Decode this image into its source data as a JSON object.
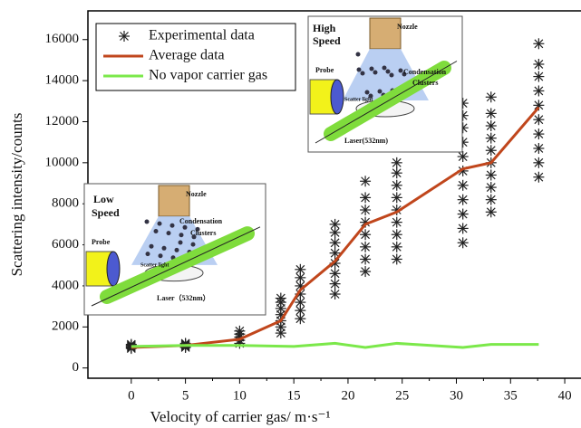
{
  "chart_data": {
    "type": "scatter",
    "xlabel": "Velocity of carrier gas/ m·s⁻¹",
    "ylabel": "Scattering intensity/counts",
    "xlim": [
      -4,
      41.5
    ],
    "ylim": [
      -500,
      17400
    ],
    "xticks": [
      0,
      5,
      10,
      15,
      20,
      25,
      30,
      35,
      40
    ],
    "yticks": [
      0,
      2000,
      4000,
      6000,
      8000,
      10000,
      12000,
      14000,
      16000
    ],
    "legend": "upper left",
    "series": [
      {
        "name": "Experimental data",
        "type": "scatter",
        "color": "#222222",
        "x": [
          0,
          0,
          0,
          0,
          0,
          5,
          5,
          5,
          5,
          5,
          10,
          10,
          10,
          10,
          10,
          13.8,
          13.8,
          13.8,
          13.8,
          13.8,
          13.8,
          13.8,
          15.6,
          15.6,
          15.6,
          15.6,
          15.6,
          15.6,
          15.6,
          18.8,
          18.8,
          18.8,
          18.8,
          18.8,
          18.8,
          18.8,
          18.8,
          21.6,
          21.6,
          21.6,
          21.6,
          21.6,
          21.6,
          21.6,
          21.6,
          24.5,
          24.5,
          24.5,
          24.5,
          24.5,
          24.5,
          24.5,
          24.5,
          24.5,
          30.6,
          30.6,
          30.6,
          30.6,
          30.6,
          30.6,
          30.6,
          30.6,
          30.6,
          30.6,
          30.6,
          33.2,
          33.2,
          33.2,
          33.2,
          33.2,
          33.2,
          33.2,
          33.2,
          33.2,
          33.2,
          37.6,
          37.6,
          37.6,
          37.6,
          37.6,
          37.6,
          37.6,
          37.6,
          37.6,
          37.6
        ],
        "values": [
          950,
          1000,
          1050,
          1100,
          1150,
          1000,
          1050,
          1100,
          1150,
          1200,
          1200,
          1350,
          1500,
          1650,
          1800,
          1700,
          2000,
          2300,
          2600,
          2900,
          3200,
          3400,
          2400,
          2800,
          3200,
          3600,
          4000,
          4400,
          4800,
          3600,
          4100,
          4600,
          5100,
          5600,
          6100,
          6600,
          7000,
          4700,
          5300,
          5900,
          6500,
          7100,
          7700,
          8300,
          9100,
          5300,
          5900,
          6500,
          7100,
          7700,
          8300,
          8900,
          9500,
          10000,
          6100,
          6800,
          7500,
          8200,
          8900,
          9600,
          10300,
          11000,
          11700,
          12300,
          12900,
          7600,
          8200,
          8800,
          9400,
          10000,
          10600,
          11200,
          11800,
          12400,
          13200,
          9300,
          10000,
          10700,
          11400,
          12100,
          12800,
          13500,
          14200,
          14800,
          15800
        ]
      },
      {
        "name": "Average data",
        "type": "line",
        "color": "#c0461c",
        "x": [
          0,
          5,
          10,
          13.8,
          15.6,
          18.8,
          21.6,
          24.5,
          30.6,
          33.2,
          37.6
        ],
        "values": [
          1000,
          1100,
          1400,
          2300,
          3800,
          5200,
          7000,
          7600,
          9700,
          10000,
          12700
        ]
      },
      {
        "name": "No vapor carrier gas",
        "type": "line",
        "color": "#7be84a",
        "x": [
          0,
          5,
          10,
          15,
          18.8,
          21.6,
          24.5,
          30.6,
          33.2,
          37.6
        ],
        "values": [
          1050,
          1100,
          1100,
          1050,
          1200,
          1000,
          1200,
          1000,
          1150,
          1150
        ]
      }
    ],
    "insets": [
      {
        "labels": [
          "High",
          "Speed",
          "Nozzle",
          "Condensation",
          "Clusters",
          "Probe",
          "Scatter light",
          "Laser(532nm)"
        ]
      },
      {
        "labels": [
          "Low",
          "Speed",
          "Nozzle",
          "Condensation",
          "Clusters",
          "Probe",
          "Scatter light",
          "Laser（532nm）"
        ]
      }
    ]
  }
}
